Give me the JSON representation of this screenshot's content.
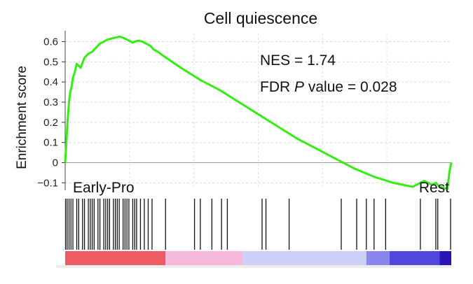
{
  "chart_data": {
    "type": "line",
    "title": "Cell quiescence",
    "xlabel": "",
    "ylabel": "Enrichment score",
    "ylim": [
      -0.13,
      0.64
    ],
    "yticks": [
      {
        "value": 0.6,
        "label": "0.6"
      },
      {
        "value": 0.5,
        "label": "0.5"
      },
      {
        "value": 0.4,
        "label": "0.4"
      },
      {
        "value": 0.3,
        "label": "0.3"
      },
      {
        "value": 0.2,
        "label": "0.2"
      },
      {
        "value": 0.1,
        "label": "0.1"
      },
      {
        "value": 0.0,
        "label": "0"
      },
      {
        "value": -0.1,
        "label": "−0.1"
      }
    ],
    "xlim": [
      0,
      1
    ],
    "grid": true,
    "series": [
      {
        "color": "#33ee11",
        "x": [
          0.0,
          0.003,
          0.006,
          0.01,
          0.013,
          0.017,
          0.02,
          0.025,
          0.03,
          0.035,
          0.04,
          0.05,
          0.06,
          0.07,
          0.08,
          0.09,
          0.1,
          0.11,
          0.12,
          0.13,
          0.14,
          0.15,
          0.16,
          0.17,
          0.175,
          0.18,
          0.19,
          0.2,
          0.21,
          0.22,
          0.23,
          0.24,
          0.25,
          0.3,
          0.35,
          0.4,
          0.45,
          0.5,
          0.55,
          0.6,
          0.65,
          0.7,
          0.75,
          0.8,
          0.85,
          0.9,
          0.93,
          0.95,
          0.96,
          0.97,
          0.98,
          0.99,
          0.995,
          1.0
        ],
        "y": [
          0.0,
          0.1,
          0.2,
          0.3,
          0.35,
          0.38,
          0.42,
          0.45,
          0.49,
          0.48,
          0.47,
          0.52,
          0.54,
          0.55,
          0.57,
          0.59,
          0.6,
          0.61,
          0.615,
          0.62,
          0.625,
          0.62,
          0.61,
          0.6,
          0.595,
          0.6,
          0.605,
          0.6,
          0.59,
          0.58,
          0.56,
          0.55,
          0.535,
          0.47,
          0.41,
          0.36,
          0.3,
          0.24,
          0.18,
          0.12,
          0.07,
          0.02,
          -0.03,
          -0.07,
          -0.1,
          -0.12,
          -0.09,
          -0.11,
          -0.1,
          -0.12,
          -0.125,
          -0.13,
          -0.05,
          0.0
        ]
      }
    ],
    "annotations": {
      "nes": "NES = 1.74",
      "fdr_prefix": "FDR ",
      "fdr_italic": "P",
      "fdr_suffix": " value = 0.028",
      "left_label": "Early-Pro",
      "right_label": "Rest"
    },
    "hit_positions": [
      0.0,
      0.005,
      0.01,
      0.015,
      0.02,
      0.03,
      0.035,
      0.045,
      0.05,
      0.06,
      0.065,
      0.07,
      0.075,
      0.085,
      0.09,
      0.1,
      0.105,
      0.11,
      0.115,
      0.125,
      0.13,
      0.135,
      0.14,
      0.15,
      0.155,
      0.16,
      0.165,
      0.175,
      0.18,
      0.185,
      0.195,
      0.205,
      0.215,
      0.225,
      0.26,
      0.335,
      0.35,
      0.38,
      0.405,
      0.42,
      0.51,
      0.52,
      0.58,
      0.715,
      0.755,
      0.78,
      0.8,
      0.83,
      0.92,
      0.96,
      0.965,
      1.0
    ],
    "ranking_gradient": [
      {
        "from": 0.0,
        "to": 0.26,
        "color": "#ee5c62"
      },
      {
        "from": 0.26,
        "to": 0.46,
        "color": "#f7b8de"
      },
      {
        "from": 0.46,
        "to": 0.78,
        "color": "#ccd0f6"
      },
      {
        "from": 0.78,
        "to": 0.84,
        "color": "#8a86ee"
      },
      {
        "from": 0.84,
        "to": 0.97,
        "color": "#5048dc"
      },
      {
        "from": 0.97,
        "to": 1.0,
        "color": "#2a14b8"
      }
    ]
  }
}
